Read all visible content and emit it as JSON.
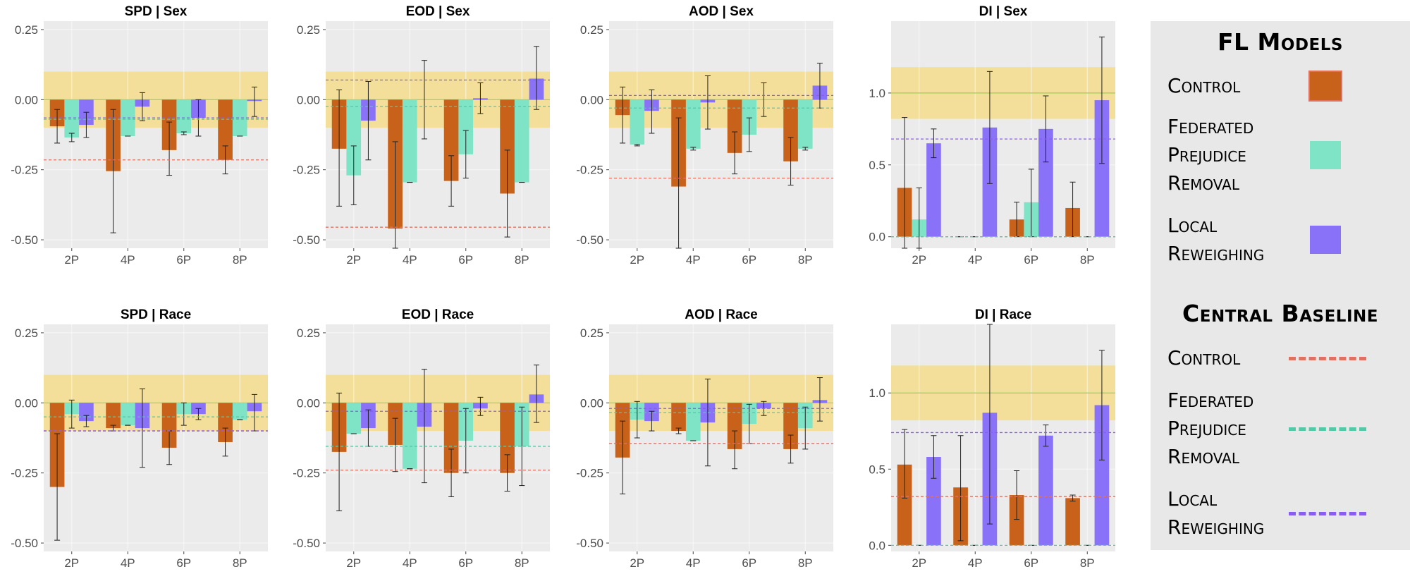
{
  "colors": {
    "control": "#c8611a",
    "prejudice": "#7fe3c6",
    "reweighing": "#8a72f8",
    "panel_bg": "#ebebeb",
    "grid": "#ffffff",
    "fair_band": "#f3df9a",
    "ideal_line": "#98cc55",
    "base_control": "#e07060",
    "base_prejudice": "#54c9a8",
    "base_reweighing": "#8a5cf0"
  },
  "legend": {
    "fl_title": "FL Models",
    "fl_items": [
      {
        "lines": [
          "Control"
        ],
        "color": "#c8611a"
      },
      {
        "lines": [
          "Federated",
          "Prejudice",
          "Removal"
        ],
        "color": "#7fe3c6"
      },
      {
        "lines": [
          "Local",
          "Reweighing"
        ],
        "color": "#8a72f8"
      }
    ],
    "baseline_title": "Central Baseline",
    "baseline_items": [
      {
        "lines": [
          "Control"
        ],
        "color": "#e07060"
      },
      {
        "lines": [
          "Federated",
          "Prejudice",
          "Removal"
        ],
        "color": "#54c9a8"
      },
      {
        "lines": [
          "Local",
          "Reweighing"
        ],
        "color": "#8a5cf0"
      }
    ]
  },
  "chart_data": [
    {
      "type": "bar",
      "title": "SPD | Sex",
      "categories": [
        "2P",
        "4P",
        "6P",
        "8P"
      ],
      "ylim": [
        -0.53,
        0.28
      ],
      "yticks": [
        "0.25",
        "0.00",
        "-0.25",
        "-0.50"
      ],
      "ytick_values": [
        0.25,
        0.0,
        -0.25,
        -0.5
      ],
      "band": [
        -0.1,
        0.1
      ],
      "ideal": 0.0,
      "baselines": {
        "control": -0.215,
        "prejudice": -0.07,
        "reweighing": -0.065
      },
      "series": [
        {
          "key": "control",
          "values": [
            -0.095,
            -0.255,
            -0.18,
            -0.215
          ],
          "err_low": [
            -0.155,
            -0.475,
            -0.27,
            -0.265
          ],
          "err_high": [
            -0.035,
            -0.035,
            -0.08,
            -0.165
          ]
        },
        {
          "key": "prejudice",
          "values": [
            -0.135,
            -0.13,
            -0.12,
            -0.13
          ],
          "err_low": [
            -0.15,
            -0.13,
            -0.125,
            -0.13
          ],
          "err_high": [
            -0.12,
            -0.13,
            -0.115,
            -0.13
          ]
        },
        {
          "key": "reweighing",
          "values": [
            -0.09,
            -0.025,
            -0.065,
            -0.005
          ],
          "err_low": [
            -0.135,
            -0.075,
            -0.13,
            -0.06
          ],
          "err_high": [
            -0.045,
            0.025,
            0.0,
            0.045
          ]
        }
      ]
    },
    {
      "type": "bar",
      "title": "EOD | Sex",
      "categories": [
        "2P",
        "4P",
        "6P",
        "8P"
      ],
      "ylim": [
        -0.53,
        0.28
      ],
      "yticks": [
        "0.25",
        "0.00",
        "-0.25",
        "-0.50"
      ],
      "ytick_values": [
        0.25,
        0.0,
        -0.25,
        -0.5
      ],
      "band": [
        -0.1,
        0.1
      ],
      "ideal": 0.0,
      "baselines": {
        "control": -0.455,
        "prejudice": -0.025,
        "reweighing": 0.07
      },
      "series": [
        {
          "key": "control",
          "values": [
            -0.175,
            -0.46,
            -0.29,
            -0.335
          ],
          "err_low": [
            -0.38,
            -0.53,
            -0.38,
            -0.49
          ],
          "err_high": [
            0.035,
            -0.15,
            -0.2,
            -0.18
          ]
        },
        {
          "key": "prejudice",
          "values": [
            -0.27,
            -0.295,
            -0.195,
            -0.295
          ],
          "err_low": [
            -0.375,
            -0.295,
            -0.28,
            -0.295
          ],
          "err_high": [
            -0.165,
            -0.295,
            -0.11,
            -0.295
          ]
        },
        {
          "key": "reweighing",
          "values": [
            -0.075,
            0.0,
            0.005,
            0.075
          ],
          "err_low": [
            -0.215,
            -0.14,
            -0.05,
            -0.035
          ],
          "err_high": [
            0.065,
            0.14,
            0.06,
            0.19
          ]
        }
      ]
    },
    {
      "type": "bar",
      "title": "AOD | Sex",
      "categories": [
        "2P",
        "4P",
        "6P",
        "8P"
      ],
      "ylim": [
        -0.53,
        0.28
      ],
      "yticks": [
        "0.25",
        "0.00",
        "-0.25",
        "-0.50"
      ],
      "ytick_values": [
        0.25,
        0.0,
        -0.25,
        -0.5
      ],
      "band": [
        -0.1,
        0.1
      ],
      "ideal": 0.0,
      "baselines": {
        "control": -0.28,
        "prejudice": -0.03,
        "reweighing": 0.015
      },
      "series": [
        {
          "key": "control",
          "values": [
            -0.055,
            -0.31,
            -0.19,
            -0.22
          ],
          "err_low": [
            -0.155,
            -0.53,
            -0.265,
            -0.305
          ],
          "err_high": [
            0.045,
            -0.065,
            -0.115,
            -0.135
          ]
        },
        {
          "key": "prejudice",
          "values": [
            -0.16,
            -0.175,
            -0.125,
            -0.175
          ],
          "err_low": [
            -0.165,
            -0.18,
            -0.185,
            -0.18
          ],
          "err_high": [
            -0.16,
            -0.17,
            -0.065,
            -0.17
          ]
        },
        {
          "key": "reweighing",
          "values": [
            -0.04,
            -0.01,
            0.0,
            0.05
          ],
          "err_low": [
            -0.12,
            -0.105,
            -0.06,
            -0.03
          ],
          "err_high": [
            0.035,
            0.085,
            0.06,
            0.13
          ]
        }
      ]
    },
    {
      "type": "bar",
      "title": "DI | Sex",
      "categories": [
        "2P",
        "4P",
        "6P",
        "8P"
      ],
      "ylim": [
        -0.08,
        1.5
      ],
      "yticks": [
        "1.0",
        "0.5",
        "0.0"
      ],
      "ytick_values": [
        1.0,
        0.5,
        0.0
      ],
      "band": [
        0.82,
        1.18
      ],
      "ideal": 1.0,
      "baselines": {
        "control": 0.0,
        "prejudice": 0.0,
        "reweighing": 0.68
      },
      "series": [
        {
          "key": "control",
          "values": [
            0.34,
            0.0,
            0.12,
            0.2
          ],
          "err_low": [
            -0.08,
            0.0,
            0.0,
            0.0
          ],
          "err_high": [
            0.83,
            0.0,
            0.24,
            0.38
          ]
        },
        {
          "key": "prejudice",
          "values": [
            0.12,
            0.0,
            0.24,
            0.0
          ],
          "err_low": [
            -0.08,
            0.0,
            0.0,
            0.0
          ],
          "err_high": [
            0.34,
            0.0,
            0.47,
            0.0
          ]
        },
        {
          "key": "reweighing",
          "values": [
            0.65,
            0.76,
            0.75,
            0.95
          ],
          "err_low": [
            0.55,
            0.37,
            0.52,
            0.51
          ],
          "err_high": [
            0.75,
            1.15,
            0.98,
            1.39
          ]
        }
      ]
    },
    {
      "type": "bar",
      "title": "SPD | Race",
      "categories": [
        "2P",
        "4P",
        "6P",
        "8P"
      ],
      "ylim": [
        -0.53,
        0.28
      ],
      "yticks": [
        "0.25",
        "0.00",
        "-0.25",
        "-0.50"
      ],
      "ytick_values": [
        0.25,
        0.0,
        -0.25,
        -0.5
      ],
      "band": [
        -0.1,
        0.1
      ],
      "ideal": 0.0,
      "baselines": {
        "control": -0.1,
        "prejudice": -0.05,
        "reweighing": -0.1
      },
      "series": [
        {
          "key": "control",
          "values": [
            -0.3,
            -0.09,
            -0.16,
            -0.14
          ],
          "err_low": [
            -0.49,
            -0.1,
            -0.22,
            -0.19
          ],
          "err_high": [
            -0.11,
            -0.08,
            -0.1,
            -0.09
          ]
        },
        {
          "key": "prejudice",
          "values": [
            -0.04,
            -0.08,
            -0.04,
            -0.06
          ],
          "err_low": [
            -0.09,
            -0.08,
            -0.08,
            -0.06
          ],
          "err_high": [
            0.01,
            -0.08,
            0.0,
            -0.06
          ]
        },
        {
          "key": "reweighing",
          "values": [
            -0.065,
            -0.09,
            -0.04,
            -0.03
          ],
          "err_low": [
            -0.085,
            -0.23,
            -0.06,
            -0.1
          ],
          "err_high": [
            -0.045,
            0.05,
            -0.02,
            0.03
          ]
        }
      ]
    },
    {
      "type": "bar",
      "title": "EOD | Race",
      "categories": [
        "2P",
        "4P",
        "6P",
        "8P"
      ],
      "ylim": [
        -0.53,
        0.28
      ],
      "yticks": [
        "0.25",
        "0.00",
        "-0.25",
        "-0.50"
      ],
      "ytick_values": [
        0.25,
        0.0,
        -0.25,
        -0.5
      ],
      "band": [
        -0.1,
        0.1
      ],
      "ideal": 0.0,
      "baselines": {
        "control": -0.24,
        "prejudice": -0.155,
        "reweighing": -0.03
      },
      "series": [
        {
          "key": "control",
          "values": [
            -0.175,
            -0.15,
            -0.25,
            -0.25
          ],
          "err_low": [
            -0.385,
            -0.245,
            -0.335,
            -0.315
          ],
          "err_high": [
            0.035,
            -0.055,
            -0.165,
            -0.185
          ]
        },
        {
          "key": "prejudice",
          "values": [
            -0.11,
            -0.235,
            -0.135,
            -0.155
          ],
          "err_low": [
            -0.11,
            -0.235,
            -0.25,
            -0.295
          ],
          "err_high": [
            -0.11,
            -0.235,
            -0.02,
            -0.015
          ]
        },
        {
          "key": "reweighing",
          "values": [
            -0.09,
            -0.085,
            -0.02,
            0.03
          ],
          "err_low": [
            -0.155,
            -0.285,
            -0.045,
            -0.07
          ],
          "err_high": [
            -0.025,
            0.12,
            0.02,
            0.135
          ]
        }
      ]
    },
    {
      "type": "bar",
      "title": "AOD | Race",
      "categories": [
        "2P",
        "4P",
        "6P",
        "8P"
      ],
      "ylim": [
        -0.53,
        0.28
      ],
      "yticks": [
        "0.25",
        "0.00",
        "-0.25",
        "-0.50"
      ],
      "ytick_values": [
        0.25,
        0.0,
        -0.25,
        -0.5
      ],
      "band": [
        -0.1,
        0.1
      ],
      "ideal": 0.0,
      "baselines": {
        "control": -0.145,
        "prejudice": -0.035,
        "reweighing": -0.02
      },
      "series": [
        {
          "key": "control",
          "values": [
            -0.195,
            -0.1,
            -0.165,
            -0.165
          ],
          "err_low": [
            -0.325,
            -0.11,
            -0.235,
            -0.215
          ],
          "err_high": [
            -0.065,
            -0.09,
            -0.1,
            -0.115
          ]
        },
        {
          "key": "prejudice",
          "values": [
            -0.06,
            -0.135,
            -0.075,
            -0.09
          ],
          "err_low": [
            -0.125,
            -0.135,
            -0.145,
            -0.165
          ],
          "err_high": [
            0.005,
            -0.135,
            -0.005,
            -0.015
          ]
        },
        {
          "key": "reweighing",
          "values": [
            -0.065,
            -0.07,
            -0.02,
            0.01
          ],
          "err_low": [
            -0.1,
            -0.225,
            -0.045,
            -0.065
          ],
          "err_high": [
            -0.03,
            0.085,
            0.005,
            0.09
          ]
        }
      ]
    },
    {
      "type": "bar",
      "title": "DI | Race",
      "categories": [
        "2P",
        "4P",
        "6P",
        "8P"
      ],
      "ylim": [
        -0.04,
        1.45
      ],
      "yticks": [
        "1.0",
        "0.5",
        "0.0"
      ],
      "ytick_values": [
        1.0,
        0.5,
        0.0
      ],
      "band": [
        0.82,
        1.18
      ],
      "ideal": 1.0,
      "baselines": {
        "control": 0.32,
        "prejudice": 0.0,
        "reweighing": 0.74
      },
      "series": [
        {
          "key": "control",
          "values": [
            0.53,
            0.38,
            0.33,
            0.31
          ],
          "err_low": [
            0.31,
            0.03,
            0.17,
            0.29
          ],
          "err_high": [
            0.76,
            0.72,
            0.49,
            0.33
          ]
        },
        {
          "key": "prejudice",
          "values": [
            0.0,
            0.0,
            0.0,
            0.0
          ],
          "err_low": [
            0.0,
            0.0,
            0.0,
            0.0
          ],
          "err_high": [
            0.0,
            0.0,
            0.0,
            0.0
          ]
        },
        {
          "key": "reweighing",
          "values": [
            0.58,
            0.87,
            0.72,
            0.92
          ],
          "err_low": [
            0.44,
            0.14,
            0.65,
            0.56
          ],
          "err_high": [
            0.72,
            1.45,
            0.79,
            1.28
          ]
        }
      ]
    }
  ]
}
